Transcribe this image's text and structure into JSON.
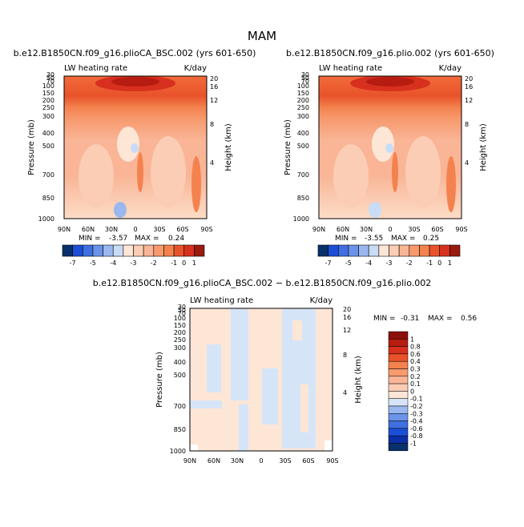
{
  "page": {
    "title": "MAM"
  },
  "colorbar_levels": {
    "top": [
      "-7",
      "-5",
      "-4",
      "-3",
      "-2",
      "-1",
      "0",
      "1"
    ],
    "bottom": [
      "1",
      "0.8",
      "0.6",
      "0.4",
      "0.3",
      "0.2",
      "0.1",
      "0",
      "-0.1",
      "-0.2",
      "-0.3",
      "-0.4",
      "-0.6",
      "-0.8",
      "-1"
    ]
  },
  "chart_data": [
    {
      "type": "heatmap",
      "title": "b.e12.B1850CN.f09_g16.plioCA_BSC.002 (yrs 601-650)",
      "subtitle_left": "LW heating rate",
      "subtitle_right": "K/day",
      "ylabel": "Pressure (mb)",
      "ylabel_right": "Height (km)",
      "x_ticks": [
        "90N",
        "60N",
        "30N",
        "0",
        "30S",
        "60S",
        "90S"
      ],
      "y_ticks": [
        "1000",
        "850",
        "700",
        "500",
        "400",
        "300",
        "250",
        "200",
        "150",
        "100",
        "70",
        "50",
        "30"
      ],
      "y_ticks_right": [
        "4",
        "8",
        "12",
        "16",
        "20"
      ],
      "ylim": [
        1000,
        30
      ],
      "min_label": "MIN =",
      "min_value": "-3.57",
      "max_label": "MAX =",
      "max_value": "0.24",
      "colorbar_ticks": [
        "-7",
        "-5",
        "-4",
        "-3",
        "-2",
        "-1",
        "0",
        "1"
      ]
    },
    {
      "type": "heatmap",
      "title": "b.e12.B1850CN.f09_g16.plio.002 (yrs 601-650)",
      "subtitle_left": "LW heating rate",
      "subtitle_right": "K/day",
      "ylabel": "Pressure (mb)",
      "ylabel_right": "Height (km)",
      "x_ticks": [
        "90N",
        "60N",
        "30N",
        "0",
        "30S",
        "60S",
        "90S"
      ],
      "y_ticks": [
        "1000",
        "850",
        "700",
        "500",
        "400",
        "300",
        "250",
        "200",
        "150",
        "100",
        "70",
        "50",
        "30"
      ],
      "y_ticks_right": [
        "4",
        "8",
        "12",
        "16",
        "20"
      ],
      "ylim": [
        1000,
        30
      ],
      "min_label": "MIN =",
      "min_value": "-3.55",
      "max_label": "MAX =",
      "max_value": "0.25",
      "colorbar_ticks": [
        "-7",
        "-5",
        "-4",
        "-3",
        "-2",
        "-1",
        "0",
        "1"
      ]
    },
    {
      "type": "heatmap",
      "title": "b.e12.B1850CN.f09_g16.plioCA_BSC.002 − b.e12.B1850CN.f09_g16.plio.002",
      "subtitle_left": "LW heating rate",
      "subtitle_right": "K/day",
      "ylabel": "Pressure (mb)",
      "ylabel_right": "Height (km)",
      "x_ticks": [
        "90N",
        "60N",
        "30N",
        "0",
        "30S",
        "60S",
        "90S"
      ],
      "y_ticks": [
        "1000",
        "850",
        "700",
        "500",
        "400",
        "300",
        "250",
        "200",
        "150",
        "100",
        "70",
        "50",
        "30"
      ],
      "y_ticks_right": [
        "4",
        "8",
        "12",
        "16",
        "20"
      ],
      "ylim": [
        1000,
        30
      ],
      "min_label": "MIN =",
      "min_value": "-0.31",
      "max_label": "MAX =",
      "max_value": "0.56",
      "colorbar_ticks": [
        "1",
        "0.8",
        "0.6",
        "0.4",
        "0.3",
        "0.2",
        "0.1",
        "0",
        "-0.1",
        "-0.2",
        "-0.3",
        "-0.4",
        "-0.6",
        "-0.8",
        "-1"
      ]
    }
  ]
}
